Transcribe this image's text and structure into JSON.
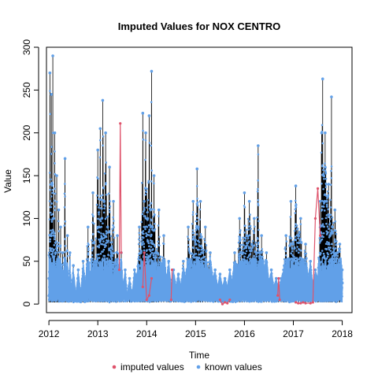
{
  "chart_data": {
    "type": "line",
    "title": "Imputed Values for  NOX CENTRO",
    "xlabel": "Time",
    "ylabel": "Value",
    "xlim": [
      2011.95,
      2018.2
    ],
    "ylim": [
      -10,
      300
    ],
    "x_ticks": [
      "2012",
      "2013",
      "2014",
      "2015",
      "2016",
      "2017",
      "2018"
    ],
    "y_ticks": [
      "0",
      "50",
      "100",
      "150",
      "200",
      "250",
      "300"
    ],
    "legend_position": "bottom-center",
    "grid": false,
    "series": [
      {
        "name": "imputed values",
        "color": "#df536b",
        "segments": [
          {
            "x": [
              2013.44,
              2013.46,
              2013.48
            ],
            "y": [
              40,
              211,
              60
            ]
          },
          {
            "x": [
              2013.92,
              2013.95,
              2014.0,
              2014.05,
              2014.1
            ],
            "y": [
              20,
              60,
              5,
              10,
              30
            ]
          },
          {
            "x": [
              2014.5,
              2014.52
            ],
            "y": [
              5,
              40
            ]
          },
          {
            "x": [
              2015.5,
              2015.55,
              2015.6,
              2015.65,
              2015.7
            ],
            "y": [
              5,
              0,
              2,
              1,
              5
            ]
          },
          {
            "x": [
              2016.68,
              2016.7,
              2016.72
            ],
            "y": [
              10,
              30,
              5
            ]
          },
          {
            "x": [
              2017.05,
              2017.1,
              2017.15,
              2017.2,
              2017.25,
              2017.35,
              2017.4,
              2017.45,
              2017.5,
              2017.55
            ],
            "y": [
              2,
              1,
              1,
              2,
              1,
              1,
              2,
              100,
              135,
              80
            ]
          }
        ]
      },
      {
        "name": "known values",
        "color": "#61a0e8",
        "line_color": "#000000",
        "points": [
          [
            2012.0,
            30
          ],
          [
            2012.02,
            270
          ],
          [
            2012.04,
            80
          ],
          [
            2012.05,
            245
          ],
          [
            2012.07,
            140
          ],
          [
            2012.08,
            290
          ],
          [
            2012.1,
            100
          ],
          [
            2012.12,
            200
          ],
          [
            2012.14,
            60
          ],
          [
            2012.16,
            150
          ],
          [
            2012.18,
            40
          ],
          [
            2012.2,
            110
          ],
          [
            2012.22,
            30
          ],
          [
            2012.24,
            90
          ],
          [
            2012.26,
            20
          ],
          [
            2012.28,
            60
          ],
          [
            2012.3,
            20
          ],
          [
            2012.33,
            170
          ],
          [
            2012.35,
            20
          ],
          [
            2012.38,
            80
          ],
          [
            2012.4,
            10
          ],
          [
            2012.43,
            60
          ],
          [
            2012.46,
            15
          ],
          [
            2012.5,
            45
          ],
          [
            2012.55,
            10
          ],
          [
            2012.6,
            40
          ],
          [
            2012.65,
            10
          ],
          [
            2012.7,
            50
          ],
          [
            2012.75,
            20
          ],
          [
            2012.8,
            90
          ],
          [
            2012.85,
            30
          ],
          [
            2012.9,
            130
          ],
          [
            2012.95,
            50
          ],
          [
            2013.0,
            180
          ],
          [
            2013.03,
            90
          ],
          [
            2013.05,
            205
          ],
          [
            2013.08,
            100
          ],
          [
            2013.1,
            238
          ],
          [
            2013.13,
            120
          ],
          [
            2013.16,
            200
          ],
          [
            2013.2,
            90
          ],
          [
            2013.24,
            160
          ],
          [
            2013.28,
            60
          ],
          [
            2013.32,
            120
          ],
          [
            2013.36,
            40
          ],
          [
            2013.4,
            80
          ],
          [
            2013.44,
            30
          ],
          [
            2013.48,
            60
          ],
          [
            2013.52,
            20
          ],
          [
            2013.56,
            40
          ],
          [
            2013.6,
            10
          ],
          [
            2013.65,
            30
          ],
          [
            2013.7,
            10
          ],
          [
            2013.75,
            40
          ],
          [
            2013.8,
            30
          ],
          [
            2013.85,
            90
          ],
          [
            2013.88,
            60
          ],
          [
            2013.92,
            223
          ],
          [
            2013.95,
            120
          ],
          [
            2013.98,
            200
          ],
          [
            2014.02,
            100
          ],
          [
            2014.05,
            220
          ],
          [
            2014.08,
            110
          ],
          [
            2014.1,
            272
          ],
          [
            2014.12,
            90
          ],
          [
            2014.15,
            150
          ],
          [
            2014.2,
            60
          ],
          [
            2014.25,
            110
          ],
          [
            2014.3,
            40
          ],
          [
            2014.35,
            80
          ],
          [
            2014.4,
            30
          ],
          [
            2014.45,
            50
          ],
          [
            2014.5,
            20
          ],
          [
            2014.55,
            40
          ],
          [
            2014.6,
            20
          ],
          [
            2014.65,
            35
          ],
          [
            2014.7,
            20
          ],
          [
            2014.75,
            50
          ],
          [
            2014.8,
            30
          ],
          [
            2014.85,
            90
          ],
          [
            2014.9,
            50
          ],
          [
            2014.95,
            120
          ],
          [
            2015.0,
            70
          ],
          [
            2015.03,
            158
          ],
          [
            2015.06,
            90
          ],
          [
            2015.1,
            120
          ],
          [
            2015.15,
            60
          ],
          [
            2015.2,
            90
          ],
          [
            2015.25,
            40
          ],
          [
            2015.3,
            60
          ],
          [
            2015.35,
            30
          ],
          [
            2015.4,
            40
          ],
          [
            2015.45,
            20
          ],
          [
            2015.5,
            35
          ],
          [
            2015.55,
            20
          ],
          [
            2015.6,
            30
          ],
          [
            2015.65,
            20
          ],
          [
            2015.7,
            40
          ],
          [
            2015.75,
            25
          ],
          [
            2015.8,
            60
          ],
          [
            2015.85,
            40
          ],
          [
            2015.9,
            100
          ],
          [
            2015.95,
            60
          ],
          [
            2016.0,
            130
          ],
          [
            2016.05,
            80
          ],
          [
            2016.1,
            120
          ],
          [
            2016.15,
            70
          ],
          [
            2016.2,
            100
          ],
          [
            2016.25,
            60
          ],
          [
            2016.28,
            185
          ],
          [
            2016.3,
            60
          ],
          [
            2016.35,
            80
          ],
          [
            2016.4,
            40
          ],
          [
            2016.45,
            60
          ],
          [
            2016.5,
            25
          ],
          [
            2016.55,
            40
          ],
          [
            2016.6,
            20
          ],
          [
            2016.65,
            30
          ],
          [
            2016.7,
            15
          ],
          [
            2016.75,
            30
          ],
          [
            2016.8,
            40
          ],
          [
            2016.85,
            80
          ],
          [
            2016.9,
            50
          ],
          [
            2016.95,
            120
          ],
          [
            2017.0,
            70
          ],
          [
            2017.05,
            138
          ],
          [
            2017.1,
            80
          ],
          [
            2017.15,
            100
          ],
          [
            2017.2,
            50
          ],
          [
            2017.25,
            70
          ],
          [
            2017.3,
            30
          ],
          [
            2017.35,
            50
          ],
          [
            2017.4,
            20
          ],
          [
            2017.45,
            40
          ],
          [
            2017.5,
            30
          ],
          [
            2017.55,
            120
          ],
          [
            2017.58,
            200
          ],
          [
            2017.6,
            263
          ],
          [
            2017.62,
            150
          ],
          [
            2017.65,
            200
          ],
          [
            2017.68,
            120
          ],
          [
            2017.72,
            140
          ],
          [
            2017.75,
            80
          ],
          [
            2017.78,
            242
          ],
          [
            2017.8,
            90
          ],
          [
            2017.85,
            110
          ],
          [
            2017.9,
            60
          ],
          [
            2017.95,
            70
          ],
          [
            2018.0,
            40
          ]
        ]
      }
    ]
  }
}
